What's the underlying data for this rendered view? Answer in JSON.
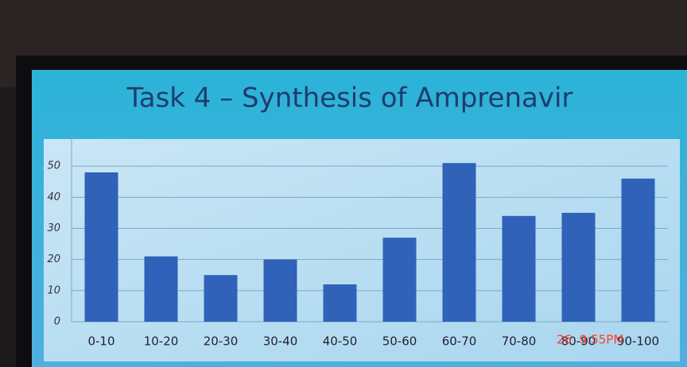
{
  "chart_data": {
    "type": "bar",
    "title": "Task 4 – Synthesis of Amprenavir",
    "categories": [
      "0-10",
      "10-20",
      "20-30",
      "30-40",
      "40-50",
      "50-60",
      "60-70",
      "70-80",
      "80-90",
      "90-100"
    ],
    "values": [
      48,
      21,
      15,
      20,
      12,
      27,
      51,
      34,
      35,
      46
    ],
    "color": "#2f62b8",
    "ylim": [
      0,
      60
    ],
    "yticks": [
      0,
      10,
      20,
      30,
      40,
      50
    ],
    "grid": true
  },
  "timestamp": "26  9:55PM"
}
